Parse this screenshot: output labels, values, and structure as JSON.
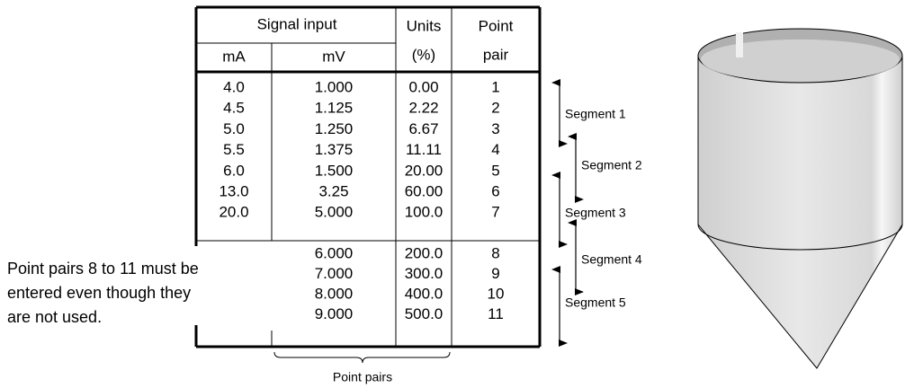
{
  "table": {
    "header": {
      "signal_input": "Signal input",
      "ma": "mA",
      "mv": "mV",
      "units": "Units",
      "units_unit": "(%)",
      "point": "Point",
      "pair": "pair"
    },
    "rows": [
      [
        "4.0",
        "1.000",
        "0.00",
        "1"
      ],
      [
        "4.5",
        "1.125",
        "2.22",
        "2"
      ],
      [
        "5.0",
        "1.250",
        "6.67",
        "3"
      ],
      [
        "5.5",
        "1.375",
        "11.11",
        "4"
      ],
      [
        "6.0",
        "1.500",
        "20.00",
        "5"
      ],
      [
        "13.0",
        "3.25",
        "60.00",
        "6"
      ],
      [
        "20.0",
        "5.000",
        "100.0",
        "7"
      ]
    ],
    "unused_rows": [
      [
        "6.000",
        "200.0",
        "8"
      ],
      [
        "7.000",
        "300.0",
        "9"
      ],
      [
        "8.000",
        "400.0",
        "10"
      ],
      [
        "9.000",
        "500.0",
        "11"
      ]
    ]
  },
  "segments": [
    "Segment 1",
    "Segment 2",
    "Segment 3",
    "Segment 4",
    "Segment 5"
  ],
  "note_lines": [
    "Point pairs 8 to 11 must be",
    "entered even though they",
    "are not used."
  ],
  "brace_label": "Point pairs"
}
